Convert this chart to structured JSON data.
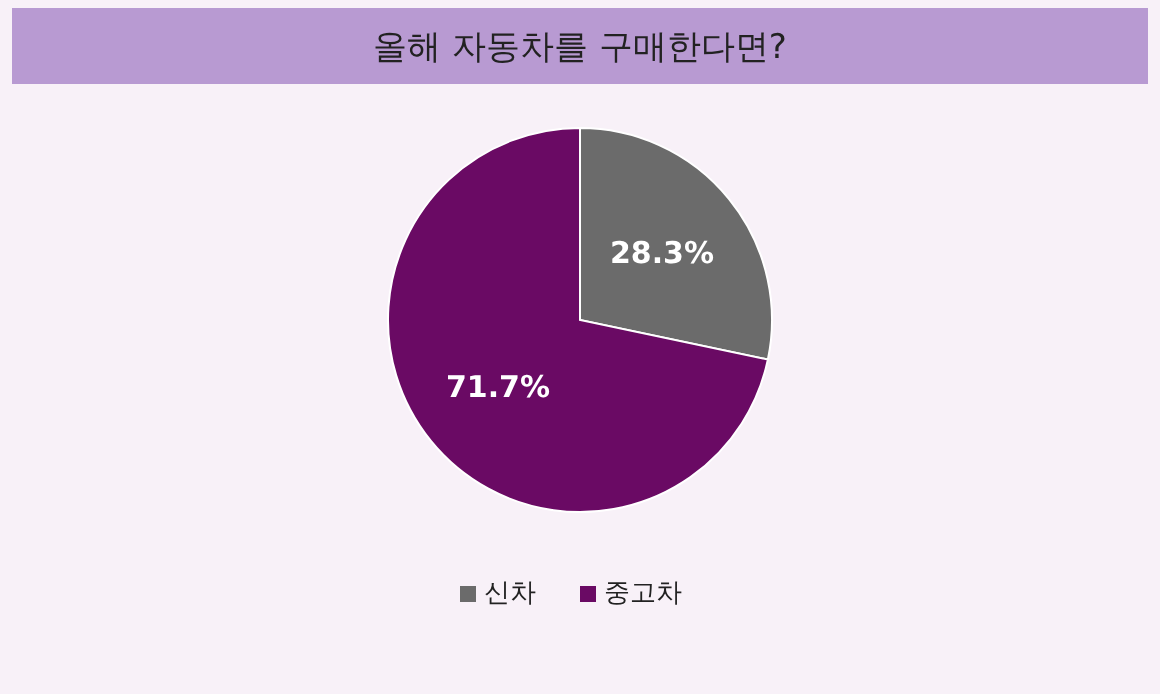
{
  "chart_data": {
    "type": "pie",
    "title": "올해 자동차를 구매한다면?",
    "categories": [
      "신차",
      "중고차"
    ],
    "values": [
      28.3,
      71.7
    ],
    "colors": [
      "#6b6b6b",
      "#6a0a64"
    ],
    "value_labels": [
      "28.3%",
      "71.7%"
    ],
    "legend": "bottom"
  }
}
